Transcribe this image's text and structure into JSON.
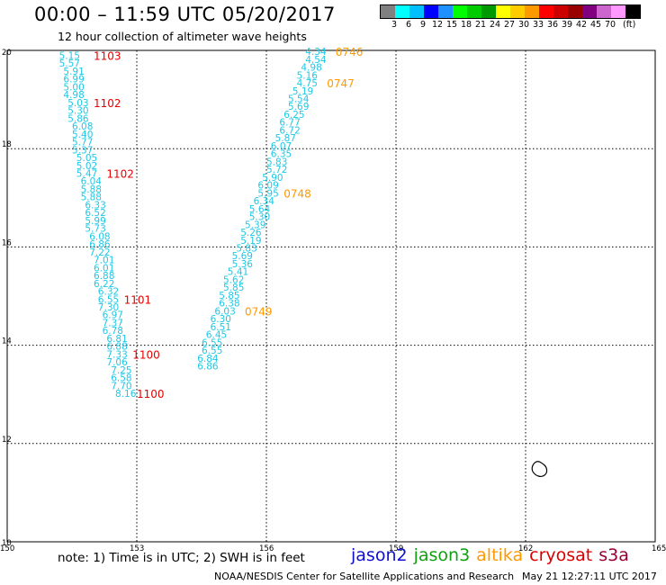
{
  "header": {
    "title": "00:00 – 11:59 UTC 05/20/2017",
    "subtitle": "12 hour collection of altimeter wave heights"
  },
  "colorbar": {
    "colors": [
      "#808080",
      "#00ffff",
      "#00bfff",
      "#0000ff",
      "#1e90ff",
      "#00ff00",
      "#00cc00",
      "#009900",
      "#ffff00",
      "#ffcc00",
      "#ff9900",
      "#ff0000",
      "#cc0000",
      "#990000",
      "#800080",
      "#cc66cc",
      "#ff99ff",
      "#000000"
    ],
    "labels": [
      "3",
      "6",
      "9",
      "12",
      "15",
      "18",
      "21",
      "24",
      "27",
      "30",
      "33",
      "36",
      "39",
      "42",
      "45",
      "70",
      "(ft)"
    ]
  },
  "map": {
    "x_ticks": [
      "150",
      "153",
      "156",
      "159",
      "162",
      "165"
    ],
    "y_ticks": [
      "20",
      "18",
      "16",
      "14",
      "12",
      "10"
    ],
    "colors": {
      "swh": "#1ec8e6",
      "cryosat": "#e60000",
      "altika": "#ff9900"
    }
  },
  "chart_data": {
    "type": "scatter",
    "xlim": [
      150,
      165
    ],
    "ylim": [
      10,
      20
    ],
    "grid": true,
    "units": "ft",
    "tracks": [
      {
        "satellite": "cryosat",
        "heights": [
          {
            "lon": 151.2,
            "lat": 19.9,
            "swh": "5.15"
          },
          {
            "lon": 151.2,
            "lat": 19.74,
            "swh": "5.57"
          },
          {
            "lon": 151.3,
            "lat": 19.58,
            "swh": "5.91"
          },
          {
            "lon": 151.3,
            "lat": 19.42,
            "swh": "6.99"
          },
          {
            "lon": 151.3,
            "lat": 19.26,
            "swh": "5.00"
          },
          {
            "lon": 151.3,
            "lat": 19.1,
            "swh": "4.98"
          },
          {
            "lon": 151.4,
            "lat": 18.94,
            "swh": "5.03"
          },
          {
            "lon": 151.4,
            "lat": 18.78,
            "swh": "5.30"
          },
          {
            "lon": 151.4,
            "lat": 18.62,
            "swh": "5.86"
          },
          {
            "lon": 151.5,
            "lat": 18.46,
            "swh": "6.08"
          },
          {
            "lon": 151.5,
            "lat": 18.3,
            "swh": "5.40"
          },
          {
            "lon": 151.5,
            "lat": 18.14,
            "swh": "5.77"
          },
          {
            "lon": 151.5,
            "lat": 17.98,
            "swh": "5.37"
          },
          {
            "lon": 151.6,
            "lat": 17.82,
            "swh": "5.05"
          },
          {
            "lon": 151.6,
            "lat": 17.66,
            "swh": "5.02"
          },
          {
            "lon": 151.6,
            "lat": 17.5,
            "swh": "5.47"
          },
          {
            "lon": 151.7,
            "lat": 17.34,
            "swh": "6.04"
          },
          {
            "lon": 151.7,
            "lat": 17.18,
            "swh": "5.88"
          },
          {
            "lon": 151.7,
            "lat": 17.02,
            "swh": "5.88"
          },
          {
            "lon": 151.8,
            "lat": 16.86,
            "swh": "6.33"
          },
          {
            "lon": 151.8,
            "lat": 16.7,
            "swh": "6.52"
          },
          {
            "lon": 151.8,
            "lat": 16.54,
            "swh": "5.99"
          },
          {
            "lon": 151.8,
            "lat": 16.38,
            "swh": "5.73"
          },
          {
            "lon": 151.9,
            "lat": 16.22,
            "swh": "6.08"
          },
          {
            "lon": 151.9,
            "lat": 16.06,
            "swh": "6.86"
          },
          {
            "lon": 151.9,
            "lat": 15.9,
            "swh": "7.22"
          },
          {
            "lon": 152.0,
            "lat": 15.74,
            "swh": "7.01"
          },
          {
            "lon": 152.0,
            "lat": 15.58,
            "swh": "6.01"
          },
          {
            "lon": 152.0,
            "lat": 15.42,
            "swh": "6.88"
          },
          {
            "lon": 152.0,
            "lat": 15.26,
            "swh": "6.22"
          },
          {
            "lon": 152.1,
            "lat": 15.1,
            "swh": "6.32"
          },
          {
            "lon": 152.1,
            "lat": 14.94,
            "swh": "6.55"
          },
          {
            "lon": 152.1,
            "lat": 14.78,
            "swh": "7.30"
          },
          {
            "lon": 152.2,
            "lat": 14.62,
            "swh": "6.97"
          },
          {
            "lon": 152.2,
            "lat": 14.46,
            "swh": "7.37"
          },
          {
            "lon": 152.2,
            "lat": 14.3,
            "swh": "6.78"
          },
          {
            "lon": 152.3,
            "lat": 14.14,
            "swh": "6.81"
          },
          {
            "lon": 152.3,
            "lat": 13.98,
            "swh": "6.88"
          },
          {
            "lon": 152.3,
            "lat": 13.82,
            "swh": "7.33"
          },
          {
            "lon": 152.3,
            "lat": 13.66,
            "swh": "7.06"
          },
          {
            "lon": 152.4,
            "lat": 13.5,
            "swh": "7.25"
          },
          {
            "lon": 152.4,
            "lat": 13.34,
            "swh": "6.58"
          },
          {
            "lon": 152.4,
            "lat": 13.18,
            "swh": "7.70"
          },
          {
            "lon": 152.5,
            "lat": 13.02,
            "swh": "8.16"
          }
        ],
        "times": [
          {
            "lon": 152.0,
            "lat": 19.9,
            "label": "1103"
          },
          {
            "lon": 152.0,
            "lat": 18.94,
            "label": "1102"
          },
          {
            "lon": 152.3,
            "lat": 17.5,
            "label": "1102"
          },
          {
            "lon": 152.7,
            "lat": 14.94,
            "label": "1101"
          },
          {
            "lon": 152.9,
            "lat": 13.82,
            "label": "1100"
          },
          {
            "lon": 153.0,
            "lat": 13.02,
            "label": "1100"
          }
        ]
      },
      {
        "satellite": "altika",
        "heights": [
          {
            "lon": 156.9,
            "lat": 19.98,
            "swh": "4.34"
          },
          {
            "lon": 156.9,
            "lat": 19.82,
            "swh": "4.54"
          },
          {
            "lon": 156.8,
            "lat": 19.66,
            "swh": "4.98"
          },
          {
            "lon": 156.7,
            "lat": 19.5,
            "swh": "5.16"
          },
          {
            "lon": 156.7,
            "lat": 19.34,
            "swh": "4.75"
          },
          {
            "lon": 156.6,
            "lat": 19.18,
            "swh": "5.19"
          },
          {
            "lon": 156.5,
            "lat": 19.02,
            "swh": "5.54"
          },
          {
            "lon": 156.5,
            "lat": 18.86,
            "swh": "5.69"
          },
          {
            "lon": 156.4,
            "lat": 18.7,
            "swh": "6.25"
          },
          {
            "lon": 156.3,
            "lat": 18.54,
            "swh": "6.77"
          },
          {
            "lon": 156.3,
            "lat": 18.38,
            "swh": "6.72"
          },
          {
            "lon": 156.2,
            "lat": 18.22,
            "swh": "5.87"
          },
          {
            "lon": 156.1,
            "lat": 18.06,
            "swh": "6.07"
          },
          {
            "lon": 156.1,
            "lat": 17.9,
            "swh": "6.35"
          },
          {
            "lon": 156.0,
            "lat": 17.74,
            "swh": "5.83"
          },
          {
            "lon": 156.0,
            "lat": 17.58,
            "swh": "5.72"
          },
          {
            "lon": 155.9,
            "lat": 17.42,
            "swh": "5.90"
          },
          {
            "lon": 155.8,
            "lat": 17.26,
            "swh": "6.09"
          },
          {
            "lon": 155.8,
            "lat": 17.1,
            "swh": "5.95"
          },
          {
            "lon": 155.7,
            "lat": 16.94,
            "swh": "6.34"
          },
          {
            "lon": 155.6,
            "lat": 16.78,
            "swh": "5.64"
          },
          {
            "lon": 155.6,
            "lat": 16.62,
            "swh": "5.30"
          },
          {
            "lon": 155.5,
            "lat": 16.46,
            "swh": "5.39"
          },
          {
            "lon": 155.4,
            "lat": 16.3,
            "swh": "5.26"
          },
          {
            "lon": 155.4,
            "lat": 16.14,
            "swh": "5.19"
          },
          {
            "lon": 155.3,
            "lat": 15.98,
            "swh": "5.83"
          },
          {
            "lon": 155.2,
            "lat": 15.82,
            "swh": "5.69"
          },
          {
            "lon": 155.2,
            "lat": 15.66,
            "swh": "5.36"
          },
          {
            "lon": 155.1,
            "lat": 15.5,
            "swh": "5.41"
          },
          {
            "lon": 155.0,
            "lat": 15.34,
            "swh": "5.62"
          },
          {
            "lon": 155.0,
            "lat": 15.18,
            "swh": "5.85"
          },
          {
            "lon": 154.9,
            "lat": 15.02,
            "swh": "5.85"
          },
          {
            "lon": 154.9,
            "lat": 14.86,
            "swh": "6.38"
          },
          {
            "lon": 154.8,
            "lat": 14.7,
            "swh": "6.03"
          },
          {
            "lon": 154.7,
            "lat": 14.54,
            "swh": "6.30"
          },
          {
            "lon": 154.7,
            "lat": 14.38,
            "swh": "6.51"
          },
          {
            "lon": 154.6,
            "lat": 14.22,
            "swh": "6.45"
          },
          {
            "lon": 154.5,
            "lat": 14.06,
            "swh": "6.55"
          },
          {
            "lon": 154.5,
            "lat": 13.9,
            "swh": "6.55"
          },
          {
            "lon": 154.4,
            "lat": 13.74,
            "swh": "6.84"
          },
          {
            "lon": 154.4,
            "lat": 13.58,
            "swh": "6.86"
          }
        ],
        "times": [
          {
            "lon": 157.6,
            "lat": 19.98,
            "label": "0746"
          },
          {
            "lon": 157.4,
            "lat": 19.34,
            "label": "0747"
          },
          {
            "lon": 156.4,
            "lat": 17.1,
            "label": "0748"
          },
          {
            "lon": 155.5,
            "lat": 14.7,
            "label": "0749"
          }
        ]
      }
    ]
  },
  "footer": {
    "note": "note: 1) Time is in UTC; 2) SWH is in feet",
    "legend": [
      {
        "name": "jason2",
        "color": "#1010cc"
      },
      {
        "name": "jason3",
        "color": "#10a010"
      },
      {
        "name": "altika",
        "color": "#ff9900"
      },
      {
        "name": "cryosat",
        "color": "#dd0000"
      },
      {
        "name": "s3a",
        "color": "#990033"
      }
    ],
    "credit": "NOAA/NESDIS Center for Satellite Applications and Research",
    "stamp": "May 21 12:27:11 UTC 2017"
  }
}
